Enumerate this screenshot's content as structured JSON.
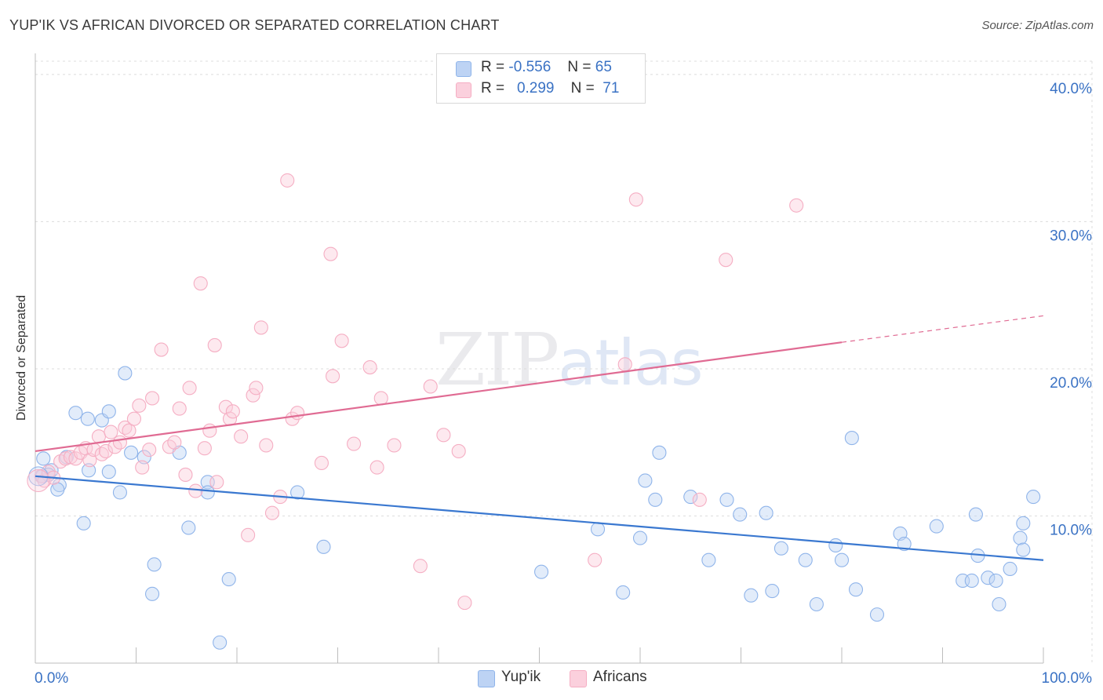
{
  "title": "YUP'IK VS AFRICAN DIVORCED OR SEPARATED CORRELATION CHART",
  "source": "Source: ZipAtlas.com",
  "watermark": {
    "zip": "ZIP",
    "atlas": "atlas"
  },
  "legend": {
    "rows": [
      {
        "r_label": "R =",
        "r_value": "-0.556",
        "n_label": "N =",
        "n_value": "65"
      },
      {
        "r_label": "R =",
        "r_value": "0.299",
        "n_label": "N =",
        "n_value": "71"
      }
    ]
  },
  "chart_data": {
    "type": "scatter",
    "title": "YUP'IK VS AFRICAN DIVORCED OR SEPARATED CORRELATION CHART",
    "xlabel": "",
    "ylabel": "Divorced or Separated",
    "xlim": [
      0,
      100
    ],
    "ylim": [
      0,
      40
    ],
    "x_tick_labels": [
      "0.0%",
      "100.0%"
    ],
    "y_ticks": [
      10,
      20,
      30,
      40
    ],
    "y_tick_labels": [
      "10.0%",
      "20.0%",
      "30.0%",
      "40.0%"
    ],
    "grid": true,
    "legend_position": "top-center",
    "series": [
      {
        "name": "Yup'ik",
        "color": "#8fb4ea",
        "line_color": "#3a78d0",
        "r": -0.556,
        "n": 65,
        "trend": {
          "x0": 0,
          "y0": 12.7,
          "x1": 100,
          "y1": 7.0
        },
        "points": [
          [
            0.7,
            12.7
          ],
          [
            1.6,
            13.1
          ],
          [
            0.8,
            13.9
          ],
          [
            1.3,
            12.8
          ],
          [
            2.4,
            12.1
          ],
          [
            2.2,
            11.8
          ],
          [
            3.1,
            14.0
          ],
          [
            4.0,
            17.0
          ],
          [
            5.3,
            13.1
          ],
          [
            5.2,
            16.6
          ],
          [
            6.6,
            16.5
          ],
          [
            7.3,
            13.0
          ],
          [
            7.3,
            17.1
          ],
          [
            8.4,
            11.6
          ],
          [
            8.9,
            19.7
          ],
          [
            9.5,
            14.3
          ],
          [
            10.8,
            14.0
          ],
          [
            11.8,
            6.7
          ],
          [
            11.6,
            4.7
          ],
          [
            14.3,
            14.3
          ],
          [
            15.2,
            9.2
          ],
          [
            17.1,
            12.3
          ],
          [
            17.1,
            11.6
          ],
          [
            18.3,
            1.4
          ],
          [
            19.2,
            5.7
          ],
          [
            26.0,
            11.6
          ],
          [
            28.6,
            7.9
          ],
          [
            4.8,
            9.5
          ],
          [
            50.2,
            6.2
          ],
          [
            55.8,
            9.1
          ],
          [
            58.3,
            4.8
          ],
          [
            60.0,
            8.5
          ],
          [
            60.5,
            12.4
          ],
          [
            61.5,
            11.1
          ],
          [
            61.9,
            14.3
          ],
          [
            65.0,
            11.3
          ],
          [
            66.8,
            7.0
          ],
          [
            68.6,
            11.1
          ],
          [
            69.9,
            10.1
          ],
          [
            71.0,
            4.6
          ],
          [
            72.5,
            10.2
          ],
          [
            73.1,
            4.9
          ],
          [
            74.0,
            7.8
          ],
          [
            76.4,
            7.0
          ],
          [
            77.5,
            4.0
          ],
          [
            79.4,
            8.0
          ],
          [
            80.0,
            7.0
          ],
          [
            81.0,
            15.3
          ],
          [
            81.4,
            5.0
          ],
          [
            83.5,
            3.3
          ],
          [
            85.8,
            8.8
          ],
          [
            86.2,
            8.1
          ],
          [
            89.4,
            9.3
          ],
          [
            92.0,
            5.6
          ],
          [
            92.9,
            5.6
          ],
          [
            93.3,
            10.1
          ],
          [
            93.5,
            7.3
          ],
          [
            94.5,
            5.8
          ],
          [
            95.3,
            5.6
          ],
          [
            95.6,
            4.0
          ],
          [
            96.7,
            6.4
          ],
          [
            98.0,
            9.5
          ],
          [
            97.7,
            8.5
          ],
          [
            98.0,
            7.7
          ],
          [
            99.0,
            11.3
          ]
        ]
      },
      {
        "name": "Africans",
        "color": "#f5aec3",
        "line_color": "#e06b93",
        "r": 0.299,
        "n": 71,
        "trend": {
          "x0": 0,
          "y0": 14.4,
          "x1": 80,
          "y1": 21.8,
          "dash_to_x": 100,
          "dash_to_y": 23.6
        },
        "points": [
          [
            0.6,
            12.7
          ],
          [
            0.9,
            12.4
          ],
          [
            1.3,
            13.0
          ],
          [
            1.8,
            12.6
          ],
          [
            2.5,
            13.7
          ],
          [
            3.0,
            13.9
          ],
          [
            3.5,
            14.0
          ],
          [
            4.0,
            13.9
          ],
          [
            4.5,
            14.3
          ],
          [
            5.0,
            14.6
          ],
          [
            5.4,
            13.8
          ],
          [
            5.8,
            14.5
          ],
          [
            6.3,
            15.4
          ],
          [
            6.6,
            14.2
          ],
          [
            7.0,
            14.4
          ],
          [
            7.5,
            15.7
          ],
          [
            7.9,
            14.7
          ],
          [
            8.4,
            15.0
          ],
          [
            8.9,
            16.0
          ],
          [
            9.3,
            15.8
          ],
          [
            9.8,
            16.6
          ],
          [
            10.3,
            17.5
          ],
          [
            10.6,
            13.3
          ],
          [
            11.3,
            14.5
          ],
          [
            11.6,
            18.0
          ],
          [
            12.5,
            21.3
          ],
          [
            13.3,
            14.7
          ],
          [
            13.8,
            15.0
          ],
          [
            14.3,
            17.3
          ],
          [
            14.9,
            12.8
          ],
          [
            15.3,
            18.7
          ],
          [
            15.9,
            11.7
          ],
          [
            16.4,
            25.8
          ],
          [
            16.8,
            14.6
          ],
          [
            17.3,
            15.8
          ],
          [
            17.8,
            21.6
          ],
          [
            18.0,
            12.3
          ],
          [
            18.9,
            17.4
          ],
          [
            19.3,
            16.6
          ],
          [
            19.6,
            17.1
          ],
          [
            20.4,
            15.4
          ],
          [
            21.1,
            8.7
          ],
          [
            21.6,
            18.2
          ],
          [
            21.9,
            18.7
          ],
          [
            22.4,
            22.8
          ],
          [
            22.9,
            14.8
          ],
          [
            23.5,
            10.2
          ],
          [
            24.3,
            11.3
          ],
          [
            25.0,
            32.8
          ],
          [
            25.5,
            16.6
          ],
          [
            26.0,
            17.0
          ],
          [
            28.4,
            13.6
          ],
          [
            29.3,
            27.8
          ],
          [
            29.5,
            19.5
          ],
          [
            30.4,
            21.9
          ],
          [
            31.6,
            14.9
          ],
          [
            33.2,
            20.1
          ],
          [
            33.9,
            13.3
          ],
          [
            34.3,
            18.0
          ],
          [
            35.6,
            14.8
          ],
          [
            38.2,
            6.6
          ],
          [
            39.2,
            18.8
          ],
          [
            40.5,
            15.5
          ],
          [
            42.0,
            14.4
          ],
          [
            42.6,
            4.1
          ],
          [
            55.5,
            7.0
          ],
          [
            58.5,
            20.3
          ],
          [
            59.6,
            31.5
          ],
          [
            65.9,
            11.1
          ],
          [
            68.5,
            27.4
          ],
          [
            75.5,
            31.1
          ]
        ]
      }
    ]
  }
}
